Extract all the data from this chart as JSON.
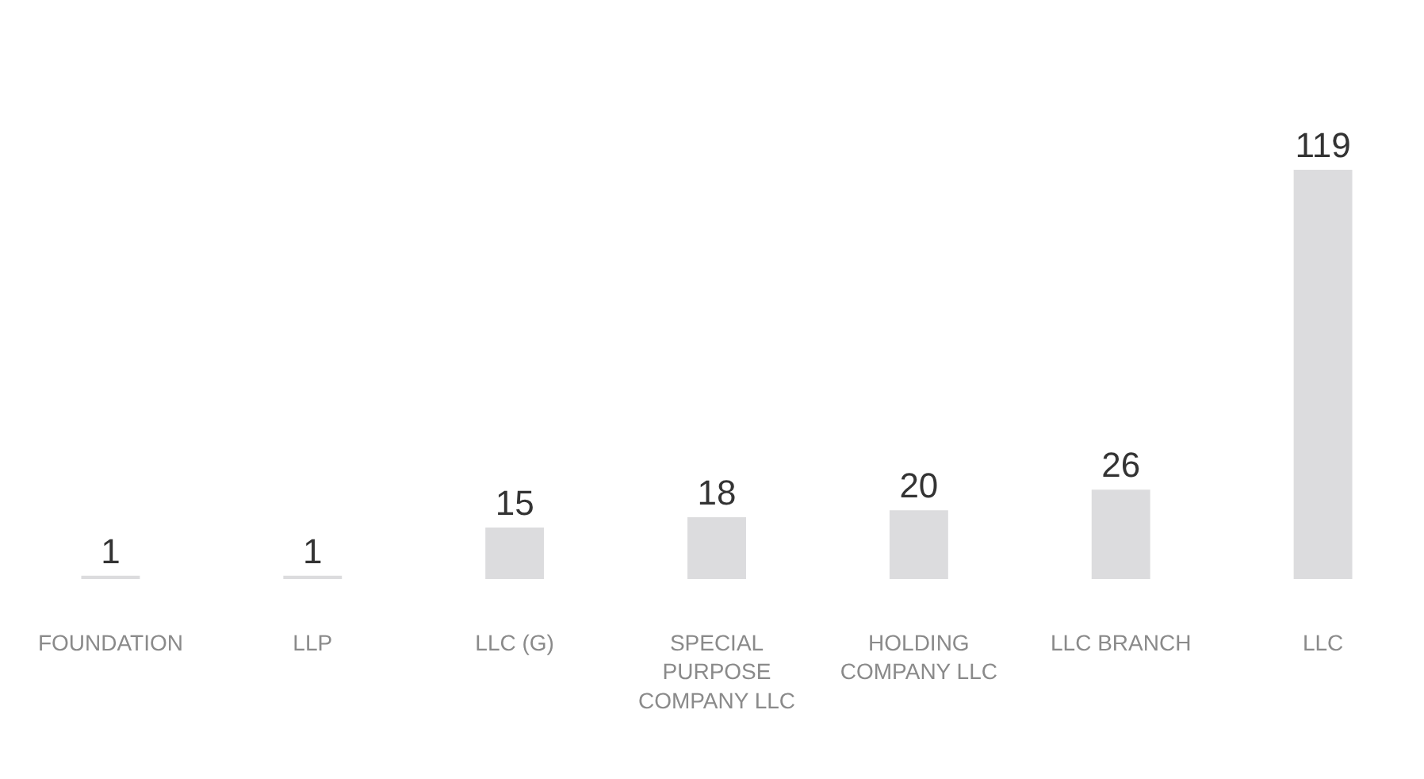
{
  "chart_data": {
    "type": "bar",
    "categories": [
      "FOUNDATION",
      "LLP",
      "LLC (G)",
      "SPECIAL PURPOSE COMPANY LLC",
      "HOLDING COMPANY LLC",
      "LLC BRANCH",
      "LLC"
    ],
    "values": [
      1,
      1,
      15,
      18,
      20,
      26,
      119
    ],
    "color": "#dcdcde",
    "data_labels": true
  }
}
